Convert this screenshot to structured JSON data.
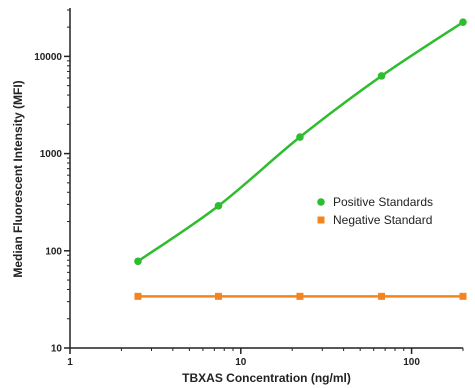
{
  "chart_data": {
    "type": "scatter",
    "xlabel": "TBXAS Concentration (ng/ml)",
    "ylabel": "Median Fluorescent Intensity (MFI)",
    "x_scale": "log",
    "y_scale": "log",
    "xlim": [
      1,
      200
    ],
    "ylim": [
      10,
      30000
    ],
    "x_ticks": [
      1,
      10,
      100
    ],
    "x_tick_labels": [
      "1",
      "10",
      "100"
    ],
    "y_ticks": [
      10,
      100,
      1000,
      10000
    ],
    "y_tick_labels": [
      "10",
      "100",
      "1000",
      "10000"
    ],
    "grid": false,
    "legend_position": "right",
    "series": [
      {
        "name": "Positive Standards",
        "color": "#2ebd2e",
        "marker": "circle",
        "fit_curve": true,
        "x": [
          2.5,
          7.4,
          22.2,
          66.7,
          200
        ],
        "y": [
          78,
          290,
          1480,
          6300,
          22500
        ]
      },
      {
        "name": "Negative Standard",
        "color": "#f5841f",
        "marker": "square",
        "fit_curve": false,
        "x": [
          2.5,
          7.4,
          22.2,
          66.7,
          200
        ],
        "y": [
          34,
          34,
          34,
          34,
          34
        ]
      }
    ]
  }
}
